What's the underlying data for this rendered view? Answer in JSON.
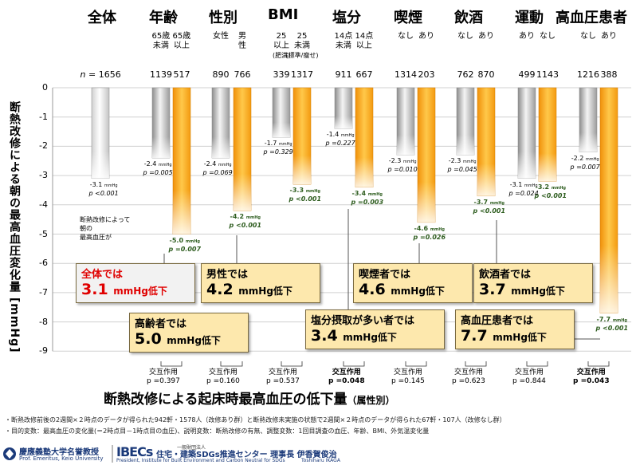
{
  "chart_data": {
    "type": "bar",
    "title": "断熱改修による起床時最高血圧の低下量",
    "title_suffix": "（属性別）",
    "ylabel": "断熱改修による朝の最高血圧変化量 [mmHg]",
    "ylim": [
      -9,
      0
    ],
    "yticks": [
      "0",
      "-1",
      "-2",
      "-3",
      "-4",
      "-5",
      "-6",
      "-7",
      "-8",
      "-9"
    ],
    "grid": true,
    "n_prefix": "n",
    "n_eq": " = ",
    "groups": [
      {
        "name": "全体",
        "subs": [
          ""
        ],
        "n": [
          "1656"
        ],
        "values": [
          -3.1
        ],
        "labels": [
          "-3.1"
        ],
        "pvals": [
          "p <0.001"
        ],
        "sig": [
          false
        ],
        "interaction": "",
        "interaction_p": ""
      },
      {
        "name": "年齢",
        "subs": [
          "65歳\n未満",
          "65歳\n以上"
        ],
        "n": [
          "1139",
          "517"
        ],
        "values": [
          -2.4,
          -5.0
        ],
        "labels": [
          "-2.4",
          "-5.0"
        ],
        "pvals": [
          "p =0.005",
          "p =0.007"
        ],
        "sig": [
          false,
          true
        ],
        "interaction": "交互作用",
        "interaction_p": "p =0.397"
      },
      {
        "name": "性別",
        "subs": [
          "女性",
          "男\n性"
        ],
        "n": [
          "890",
          "766"
        ],
        "values": [
          -2.4,
          -4.2
        ],
        "labels": [
          "-2.4",
          "-4.2"
        ],
        "pvals": [
          "p =0.069",
          "p <0.001"
        ],
        "sig": [
          false,
          true
        ],
        "interaction": "交互作用",
        "interaction_p": "p =0.160"
      },
      {
        "name": "BMI",
        "subs": [
          "25\n以上",
          "25\n未満"
        ],
        "subs_tiny": [
          "(肥満)",
          "(標準/瘦せ)"
        ],
        "n": [
          "339",
          "1317"
        ],
        "values": [
          -1.7,
          -3.3
        ],
        "labels": [
          "-1.7",
          "-3.3"
        ],
        "pvals": [
          "p =0.329",
          "p <0.001"
        ],
        "sig": [
          false,
          true
        ],
        "interaction": "交互作用",
        "interaction_p": "p =0.537"
      },
      {
        "name": "塩分",
        "subs": [
          "14点\n未満",
          "14点\n以上"
        ],
        "n": [
          "911",
          "667"
        ],
        "values": [
          -1.4,
          -3.4
        ],
        "labels": [
          "-1.4",
          "-3.4"
        ],
        "pvals": [
          "p =0.227",
          "p =0.003"
        ],
        "sig": [
          false,
          true
        ],
        "interaction": "交互作用",
        "interaction_p": "p =0.048",
        "interaction_bold": true
      },
      {
        "name": "喫煙",
        "subs": [
          "なし",
          "あり"
        ],
        "n": [
          "1314",
          "203"
        ],
        "values": [
          -2.3,
          -4.6
        ],
        "labels": [
          "-2.3",
          "-4.6"
        ],
        "pvals": [
          "p =0.010",
          "p =0.026"
        ],
        "sig": [
          false,
          true
        ],
        "interaction": "交互作用",
        "interaction_p": "p =0.145"
      },
      {
        "name": "飲酒",
        "subs": [
          "なし",
          "あり"
        ],
        "n": [
          "762",
          "870"
        ],
        "values": [
          -2.3,
          -3.7
        ],
        "labels": [
          "-2.3",
          "-3.7"
        ],
        "pvals": [
          "p =0.045",
          "p <0.001"
        ],
        "sig": [
          false,
          true
        ],
        "interaction": "交互作用",
        "interaction_p": "p =0.623"
      },
      {
        "name": "運動",
        "subs": [
          "あり",
          "なし"
        ],
        "n": [
          "499",
          "1143"
        ],
        "values": [
          -3.1,
          -3.2
        ],
        "labels": [
          "-3.1",
          "-3.2"
        ],
        "pvals": [
          "p =0.024",
          "p <0.001"
        ],
        "sig": [
          false,
          true
        ],
        "interaction": "交互作用",
        "interaction_p": "p =0.844"
      },
      {
        "name": "高血圧患者",
        "subs": [
          "なし",
          "あり"
        ],
        "n": [
          "1216",
          "388"
        ],
        "values": [
          -2.2,
          -7.7
        ],
        "labels": [
          "-2.2",
          "-7.7"
        ],
        "pvals": [
          "p =0.007",
          "p <0.001"
        ],
        "sig": [
          false,
          true
        ],
        "interaction": "交互作用",
        "interaction_p": "p =0.043",
        "interaction_bold": true
      }
    ],
    "unit_small": "mmHg",
    "legend_note": "断熱改修によって\n朝の\n最高血圧が",
    "callouts": [
      {
        "l1": "全体では",
        "l2": "3.1",
        "unit": "mmHg低下",
        "style": "gray"
      },
      {
        "l1": "高齢者では",
        "l2": "5.0",
        "unit": "mmHg低下"
      },
      {
        "l1": "男性では",
        "l2": "4.2",
        "unit": "mmHg低下"
      },
      {
        "l1": "塩分摂取が多い者では",
        "l2": "3.4",
        "unit": "mmHg低下"
      },
      {
        "l1": "喫煙者では",
        "l2": "4.6",
        "unit": "mmHg低下"
      },
      {
        "l1": "飲酒者では",
        "l2": "3.7",
        "unit": "mmHg低下"
      },
      {
        "l1": "高血圧患者では",
        "l2": "7.7",
        "unit": "mmHg低下"
      }
    ],
    "colors": {
      "gray_bar": "#c8c8c8",
      "orange_bar": "#f7a41b",
      "sig_text": "#2e5d1f"
    }
  },
  "notes": [
    "・断熱改修前後の2週間×２時点のデータが得られた942軒・1578人（改修あり群）と断熱改修未実施の状態で2週間×２時点のデータが得られた67軒・107人（改修なし群）",
    "・目的変数：最高血圧の変化量(＝2時点目－1時点目の血圧)、説明変数：断熱改修の有無、調整変数：1回目調査の血圧、年齢、BMI、外気温変化量"
  ],
  "footer": {
    "keio": "慶應義塾大学名誉教授",
    "keio_en": "Prof. Emeritus, Keio University",
    "ibec_logo": "IBECs",
    "ibec_small": "一般財団法人",
    "ibec_jp": "住宅・建築SDGs推進センター 理事長 伊香賀俊治",
    "ibec_en": "President, Institute for Built Environment and Carbon Neutral for SDGs",
    "name_en": "Toshiharu IKAGA"
  }
}
